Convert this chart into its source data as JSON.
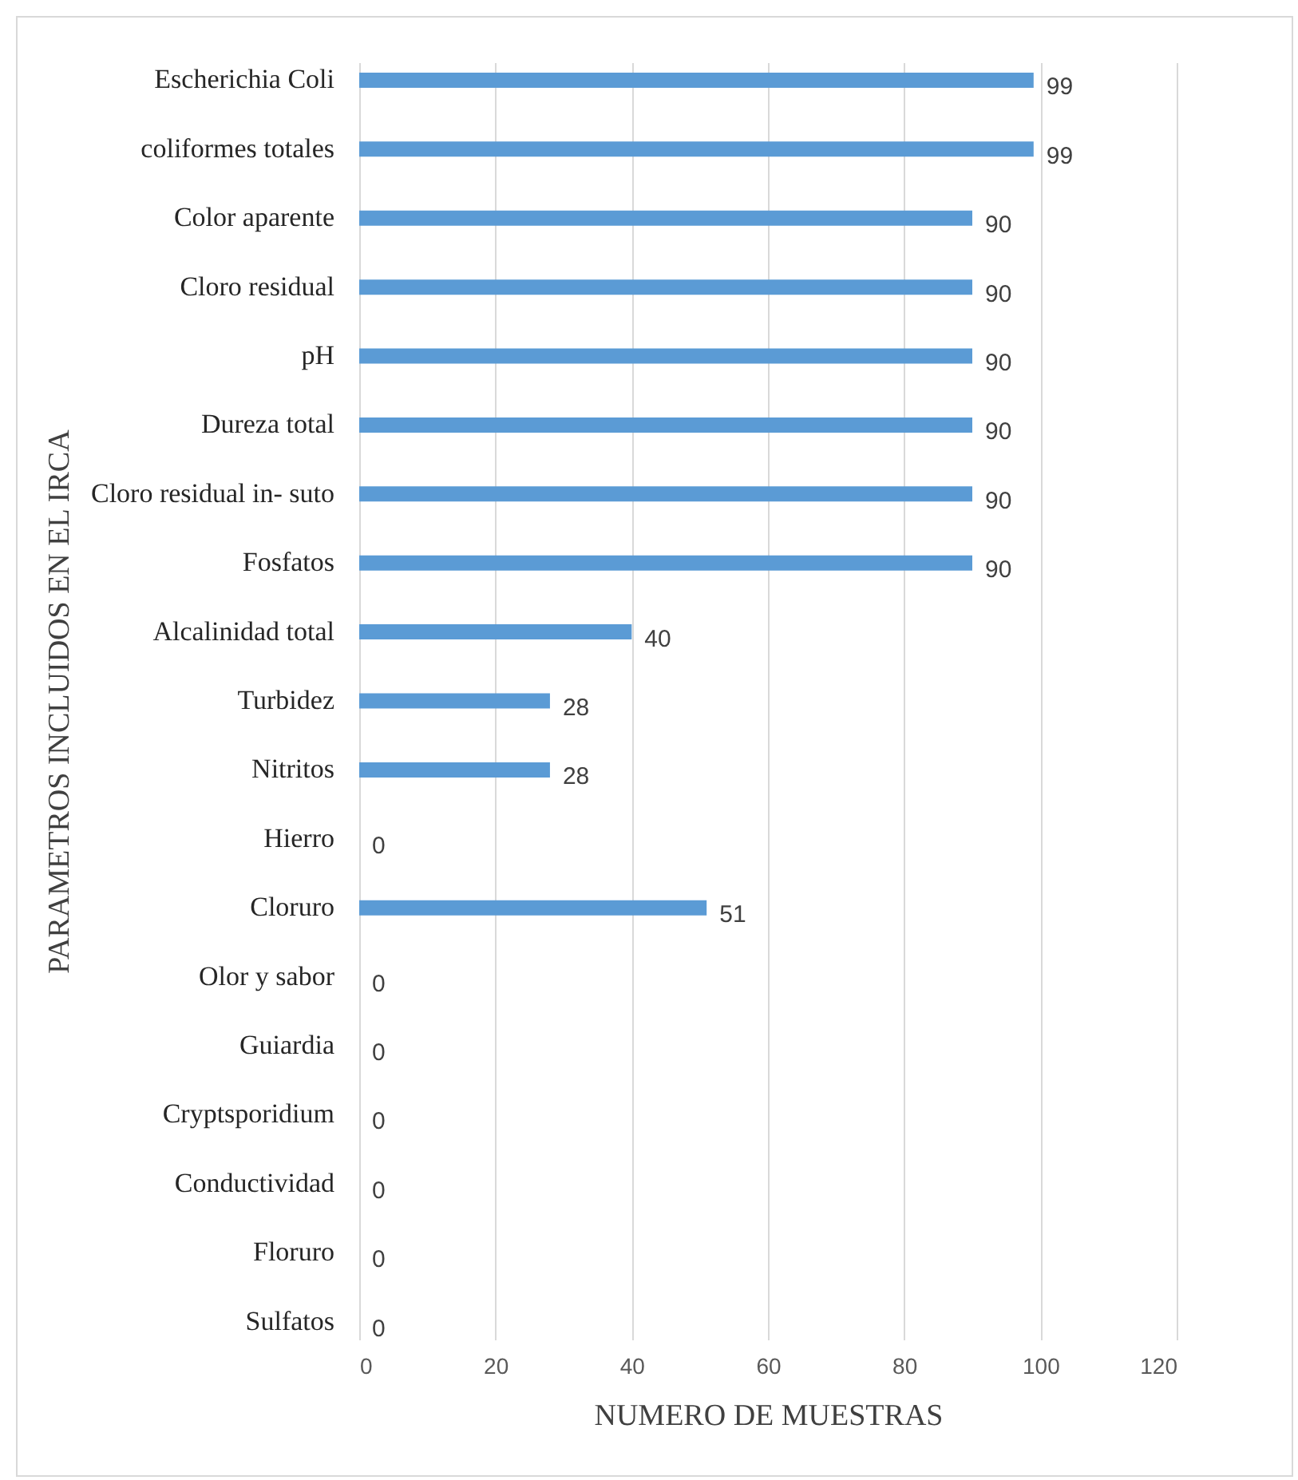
{
  "chart_data": {
    "type": "bar",
    "orientation": "horizontal",
    "xlabel": "NUMERO  DE MUESTRAS",
    "ylabel": "PARAMETROS INCLUIDOS EN EL IRCA",
    "categories": [
      "Escherichia Coli",
      "coliformes totales",
      "Color aparente",
      "Cloro residual",
      "pH",
      "Dureza total",
      "Cloro residual in- suto",
      "Fosfatos",
      "Alcalinidad total",
      "Turbidez",
      "Nitritos",
      "Hierro",
      "Cloruro",
      "Olor y sabor",
      "Guiardia",
      "Cryptsporidium",
      "Conductividad",
      "Floruro",
      "Sulfatos"
    ],
    "values": [
      99,
      99,
      90,
      90,
      90,
      90,
      90,
      90,
      40,
      28,
      28,
      0,
      51,
      0,
      0,
      0,
      0,
      0,
      0
    ],
    "color": "#5b9bd5",
    "xlim": [
      0,
      120
    ],
    "xticks": [
      0,
      20,
      40,
      60,
      80,
      100,
      120
    ],
    "grid": "x",
    "data_labels": true
  }
}
